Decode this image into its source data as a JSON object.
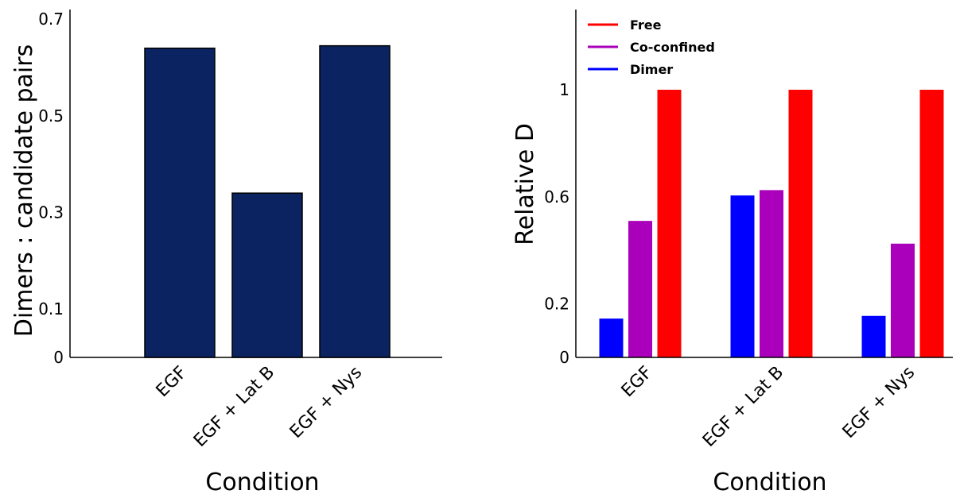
{
  "chart_data": [
    {
      "type": "bar",
      "title": "",
      "xlabel": "Condition",
      "ylabel": "Dimers : candidate pairs",
      "categories": [
        "EGF",
        "EGF + Lat B",
        "EGF + Nys"
      ],
      "values": [
        0.64,
        0.34,
        0.645
      ],
      "yticks": [
        0,
        0.1,
        0.3,
        0.5,
        0.7
      ],
      "ylim": [
        0,
        0.72
      ],
      "grid": false,
      "colors": {
        "bar": "#0b2361",
        "edge": "#000000"
      }
    },
    {
      "type": "bar",
      "title": "",
      "xlabel": "Condition",
      "ylabel": "Relative D",
      "categories": [
        "EGF",
        "EGF + Lat B",
        "EGF + Nys"
      ],
      "series": [
        {
          "name": "Dimer",
          "color": "#0000ff",
          "values": [
            0.145,
            0.605,
            0.155
          ]
        },
        {
          "name": "Co-confined",
          "color": "#aa00bb",
          "values": [
            0.51,
            0.625,
            0.425
          ]
        },
        {
          "name": "Free",
          "color": "#ff0000",
          "values": [
            1.0,
            1.0,
            1.0
          ]
        }
      ],
      "legend_order": [
        "Free",
        "Co-confined",
        "Dimer"
      ],
      "legend_position": "top-left",
      "yticks": [
        0,
        0.2,
        0.6,
        1
      ],
      "ylim": [
        0,
        1.3
      ],
      "grid": false
    }
  ]
}
